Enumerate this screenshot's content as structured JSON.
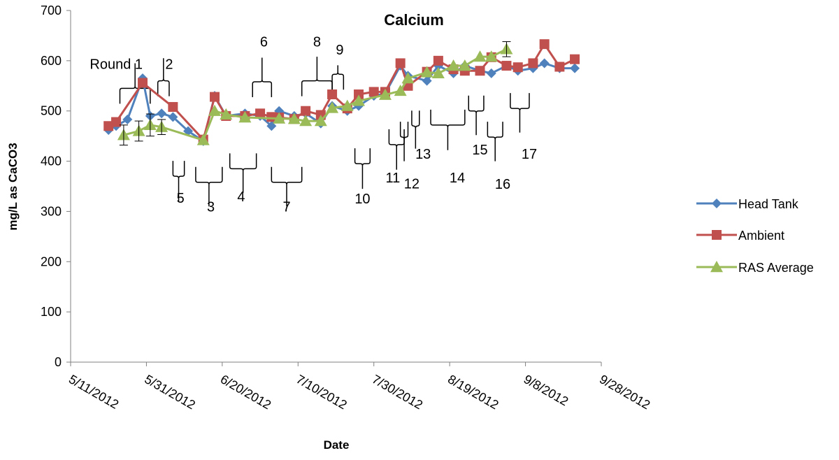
{
  "chart_data": {
    "type": "line",
    "title": "Calcium",
    "xlabel": "Date",
    "ylabel": "mg/L as CaCO3",
    "ylim": [
      0,
      700
    ],
    "yticks": [
      0,
      100,
      200,
      300,
      400,
      500,
      600,
      700
    ],
    "xlim": [
      "2012-05-11",
      "2012-09-28"
    ],
    "xticks": [
      "2012-05-11",
      "2012-05-31",
      "2012-06-20",
      "2012-07-10",
      "2012-07-30",
      "2012-08-19",
      "2012-09-08",
      "2012-09-28"
    ],
    "xtick_labels": [
      "5/11/2012",
      "5/31/2012",
      "6/20/2012",
      "7/10/2012",
      "7/30/2012",
      "8/19/2012",
      "9/8/2012",
      "9/28/2012"
    ],
    "grid": false,
    "legend_position": "right",
    "series": [
      {
        "name": "Head Tank",
        "color": "#4F81BD",
        "marker": "diamond",
        "points": [
          [
            "2012-05-21",
            462
          ],
          [
            "2012-05-23",
            470
          ],
          [
            "2012-05-26",
            483
          ],
          [
            "2012-05-30",
            565
          ],
          [
            "2012-06-01",
            490
          ],
          [
            "2012-06-04",
            495
          ],
          [
            "2012-06-07",
            488
          ],
          [
            "2012-06-11",
            460
          ],
          [
            "2012-06-15",
            440
          ],
          [
            "2012-06-18",
            530
          ],
          [
            "2012-06-21",
            490
          ],
          [
            "2012-06-26",
            495
          ],
          [
            "2012-06-30",
            490
          ],
          [
            "2012-07-03",
            470
          ],
          [
            "2012-07-05",
            500
          ],
          [
            "2012-07-09",
            490
          ],
          [
            "2012-07-12",
            495
          ],
          [
            "2012-07-16",
            475
          ],
          [
            "2012-07-19",
            510
          ],
          [
            "2012-07-23",
            500
          ],
          [
            "2012-07-26",
            510
          ],
          [
            "2012-07-30",
            530
          ],
          [
            "2012-08-02",
            535
          ],
          [
            "2012-08-06",
            590
          ],
          [
            "2012-08-08",
            570
          ],
          [
            "2012-08-13",
            560
          ],
          [
            "2012-08-16",
            590
          ],
          [
            "2012-08-20",
            575
          ],
          [
            "2012-08-23",
            590
          ],
          [
            "2012-08-27",
            580
          ],
          [
            "2012-08-30",
            575
          ],
          [
            "2012-09-03",
            590
          ],
          [
            "2012-09-06",
            580
          ],
          [
            "2012-09-10",
            585
          ],
          [
            "2012-09-13",
            595
          ],
          [
            "2012-09-17",
            585
          ],
          [
            "2012-09-21",
            585
          ]
        ]
      },
      {
        "name": "Ambient",
        "color": "#C0504D",
        "marker": "square",
        "points": [
          [
            "2012-05-21",
            470
          ],
          [
            "2012-05-23",
            478
          ],
          [
            "2012-05-30",
            556
          ],
          [
            "2012-06-07",
            508
          ],
          [
            "2012-06-15",
            443
          ],
          [
            "2012-06-18",
            528
          ],
          [
            "2012-06-21",
            490
          ],
          [
            "2012-06-26",
            490
          ],
          [
            "2012-06-30",
            495
          ],
          [
            "2012-07-03",
            488
          ],
          [
            "2012-07-05",
            487
          ],
          [
            "2012-07-09",
            484
          ],
          [
            "2012-07-12",
            500
          ],
          [
            "2012-07-16",
            492
          ],
          [
            "2012-07-19",
            533
          ],
          [
            "2012-07-23",
            505
          ],
          [
            "2012-07-26",
            533
          ],
          [
            "2012-07-30",
            538
          ],
          [
            "2012-08-02",
            538
          ],
          [
            "2012-08-06",
            595
          ],
          [
            "2012-08-08",
            550
          ],
          [
            "2012-08-13",
            578
          ],
          [
            "2012-08-16",
            600
          ],
          [
            "2012-08-20",
            583
          ],
          [
            "2012-08-23",
            580
          ],
          [
            "2012-08-27",
            580
          ],
          [
            "2012-08-30",
            607
          ],
          [
            "2012-09-03",
            590
          ],
          [
            "2012-09-06",
            587
          ],
          [
            "2012-09-10",
            595
          ],
          [
            "2012-09-13",
            633
          ],
          [
            "2012-09-17",
            588
          ],
          [
            "2012-09-21",
            603
          ]
        ]
      },
      {
        "name": "RAS Average",
        "color": "#9BBB59",
        "marker": "triangle",
        "points": [
          [
            "2012-05-25",
            452
          ],
          [
            "2012-05-29",
            460
          ],
          [
            "2012-06-01",
            472
          ],
          [
            "2012-06-04",
            468
          ],
          [
            "2012-06-15",
            442
          ],
          [
            "2012-06-18",
            500
          ],
          [
            "2012-06-21",
            493
          ],
          [
            "2012-06-26",
            487
          ],
          [
            "2012-07-05",
            485
          ],
          [
            "2012-07-09",
            484
          ],
          [
            "2012-07-12",
            480
          ],
          [
            "2012-07-16",
            480
          ],
          [
            "2012-07-19",
            506
          ],
          [
            "2012-07-23",
            510
          ],
          [
            "2012-07-26",
            520
          ],
          [
            "2012-08-02",
            532
          ],
          [
            "2012-08-06",
            540
          ],
          [
            "2012-08-08",
            565
          ],
          [
            "2012-08-13",
            577
          ],
          [
            "2012-08-16",
            575
          ],
          [
            "2012-08-20",
            590
          ],
          [
            "2012-08-23",
            590
          ],
          [
            "2012-08-27",
            608
          ],
          [
            "2012-08-30",
            608
          ],
          [
            "2012-09-03",
            623
          ]
        ]
      }
    ],
    "error_bars": [
      {
        "x": "2012-05-25",
        "y": 452,
        "err": 20
      },
      {
        "x": "2012-05-29",
        "y": 460,
        "err": 20
      },
      {
        "x": "2012-06-01",
        "y": 472,
        "err": 22
      },
      {
        "x": "2012-06-04",
        "y": 468,
        "err": 15
      },
      {
        "x": "2012-09-03",
        "y": 623,
        "err": 15
      }
    ],
    "annotations": [
      {
        "label": "Round 1",
        "x": "2012-05-30",
        "y": 584,
        "anchor": "end"
      },
      {
        "label": "2",
        "x": "2012-06-06",
        "y": 584,
        "anchor": "middle"
      },
      {
        "label": "5",
        "x": "2012-06-09",
        "y": 317,
        "anchor": "middle"
      },
      {
        "label": "3",
        "x": "2012-06-17",
        "y": 300,
        "anchor": "middle"
      },
      {
        "label": "4",
        "x": "2012-06-25",
        "y": 320,
        "anchor": "middle"
      },
      {
        "label": "6",
        "x": "2012-07-01",
        "y": 628,
        "anchor": "middle"
      },
      {
        "label": "7",
        "x": "2012-07-07",
        "y": 300,
        "anchor": "middle"
      },
      {
        "label": "8",
        "x": "2012-07-15",
        "y": 628,
        "anchor": "middle"
      },
      {
        "label": "9",
        "x": "2012-07-21",
        "y": 612,
        "anchor": "middle"
      },
      {
        "label": "10",
        "x": "2012-07-27",
        "y": 316,
        "anchor": "middle"
      },
      {
        "label": "11",
        "x": "2012-08-04",
        "y": 358,
        "anchor": "middle"
      },
      {
        "label": "12",
        "x": "2012-08-09",
        "y": 346,
        "anchor": "middle"
      },
      {
        "label": "13",
        "x": "2012-08-12",
        "y": 405,
        "anchor": "middle"
      },
      {
        "label": "14",
        "x": "2012-08-21",
        "y": 358,
        "anchor": "middle"
      },
      {
        "label": "15",
        "x": "2012-08-27",
        "y": 413,
        "anchor": "middle"
      },
      {
        "label": "16",
        "x": "2012-09-02",
        "y": 345,
        "anchor": "middle"
      },
      {
        "label": "17",
        "x": "2012-09-09",
        "y": 405,
        "anchor": "middle"
      }
    ],
    "braces": [
      {
        "x1": "2012-05-24",
        "x2": "2012-06-01",
        "y": 545,
        "dir": "up",
        "tip": 50
      },
      {
        "x1": "2012-06-03",
        "x2": "2012-06-06",
        "y": 560,
        "dir": "up",
        "tip": 45
      },
      {
        "x1": "2012-06-07",
        "x2": "2012-06-10",
        "y": 370,
        "dir": "down",
        "tip": 50
      },
      {
        "x1": "2012-06-13",
        "x2": "2012-06-20",
        "y": 358,
        "dir": "down",
        "tip": 48
      },
      {
        "x1": "2012-06-22",
        "x2": "2012-06-29",
        "y": 385,
        "dir": "down",
        "tip": 48
      },
      {
        "x1": "2012-06-28",
        "x2": "2012-07-03",
        "y": 558,
        "dir": "up",
        "tip": 48
      },
      {
        "x1": "2012-07-03",
        "x2": "2012-07-11",
        "y": 358,
        "dir": "down",
        "tip": 48
      },
      {
        "x1": "2012-07-11",
        "x2": "2012-07-19",
        "y": 560,
        "dir": "up",
        "tip": 48
      },
      {
        "x1": "2012-07-19",
        "x2": "2012-07-22",
        "y": 573,
        "dir": "up",
        "tip": 18
      },
      {
        "x1": "2012-07-25",
        "x2": "2012-07-29",
        "y": 395,
        "dir": "down",
        "tip": 50
      },
      {
        "x1": "2012-08-03",
        "x2": "2012-08-07",
        "y": 433,
        "dir": "down",
        "tip": 50
      },
      {
        "x1": "2012-08-06",
        "x2": "2012-08-08",
        "y": 448,
        "dir": "down",
        "tip": 48
      },
      {
        "x1": "2012-08-09",
        "x2": "2012-08-11",
        "y": 470,
        "dir": "down",
        "tip": 45
      },
      {
        "x1": "2012-08-14",
        "x2": "2012-08-23",
        "y": 472,
        "dir": "down",
        "tip": 50
      },
      {
        "x1": "2012-08-24",
        "x2": "2012-08-28",
        "y": 500,
        "dir": "down",
        "tip": 48
      },
      {
        "x1": "2012-08-29",
        "x2": "2012-09-02",
        "y": 448,
        "dir": "down",
        "tip": 48
      },
      {
        "x1": "2012-09-04",
        "x2": "2012-09-09",
        "y": 505,
        "dir": "down",
        "tip": 48
      }
    ]
  }
}
